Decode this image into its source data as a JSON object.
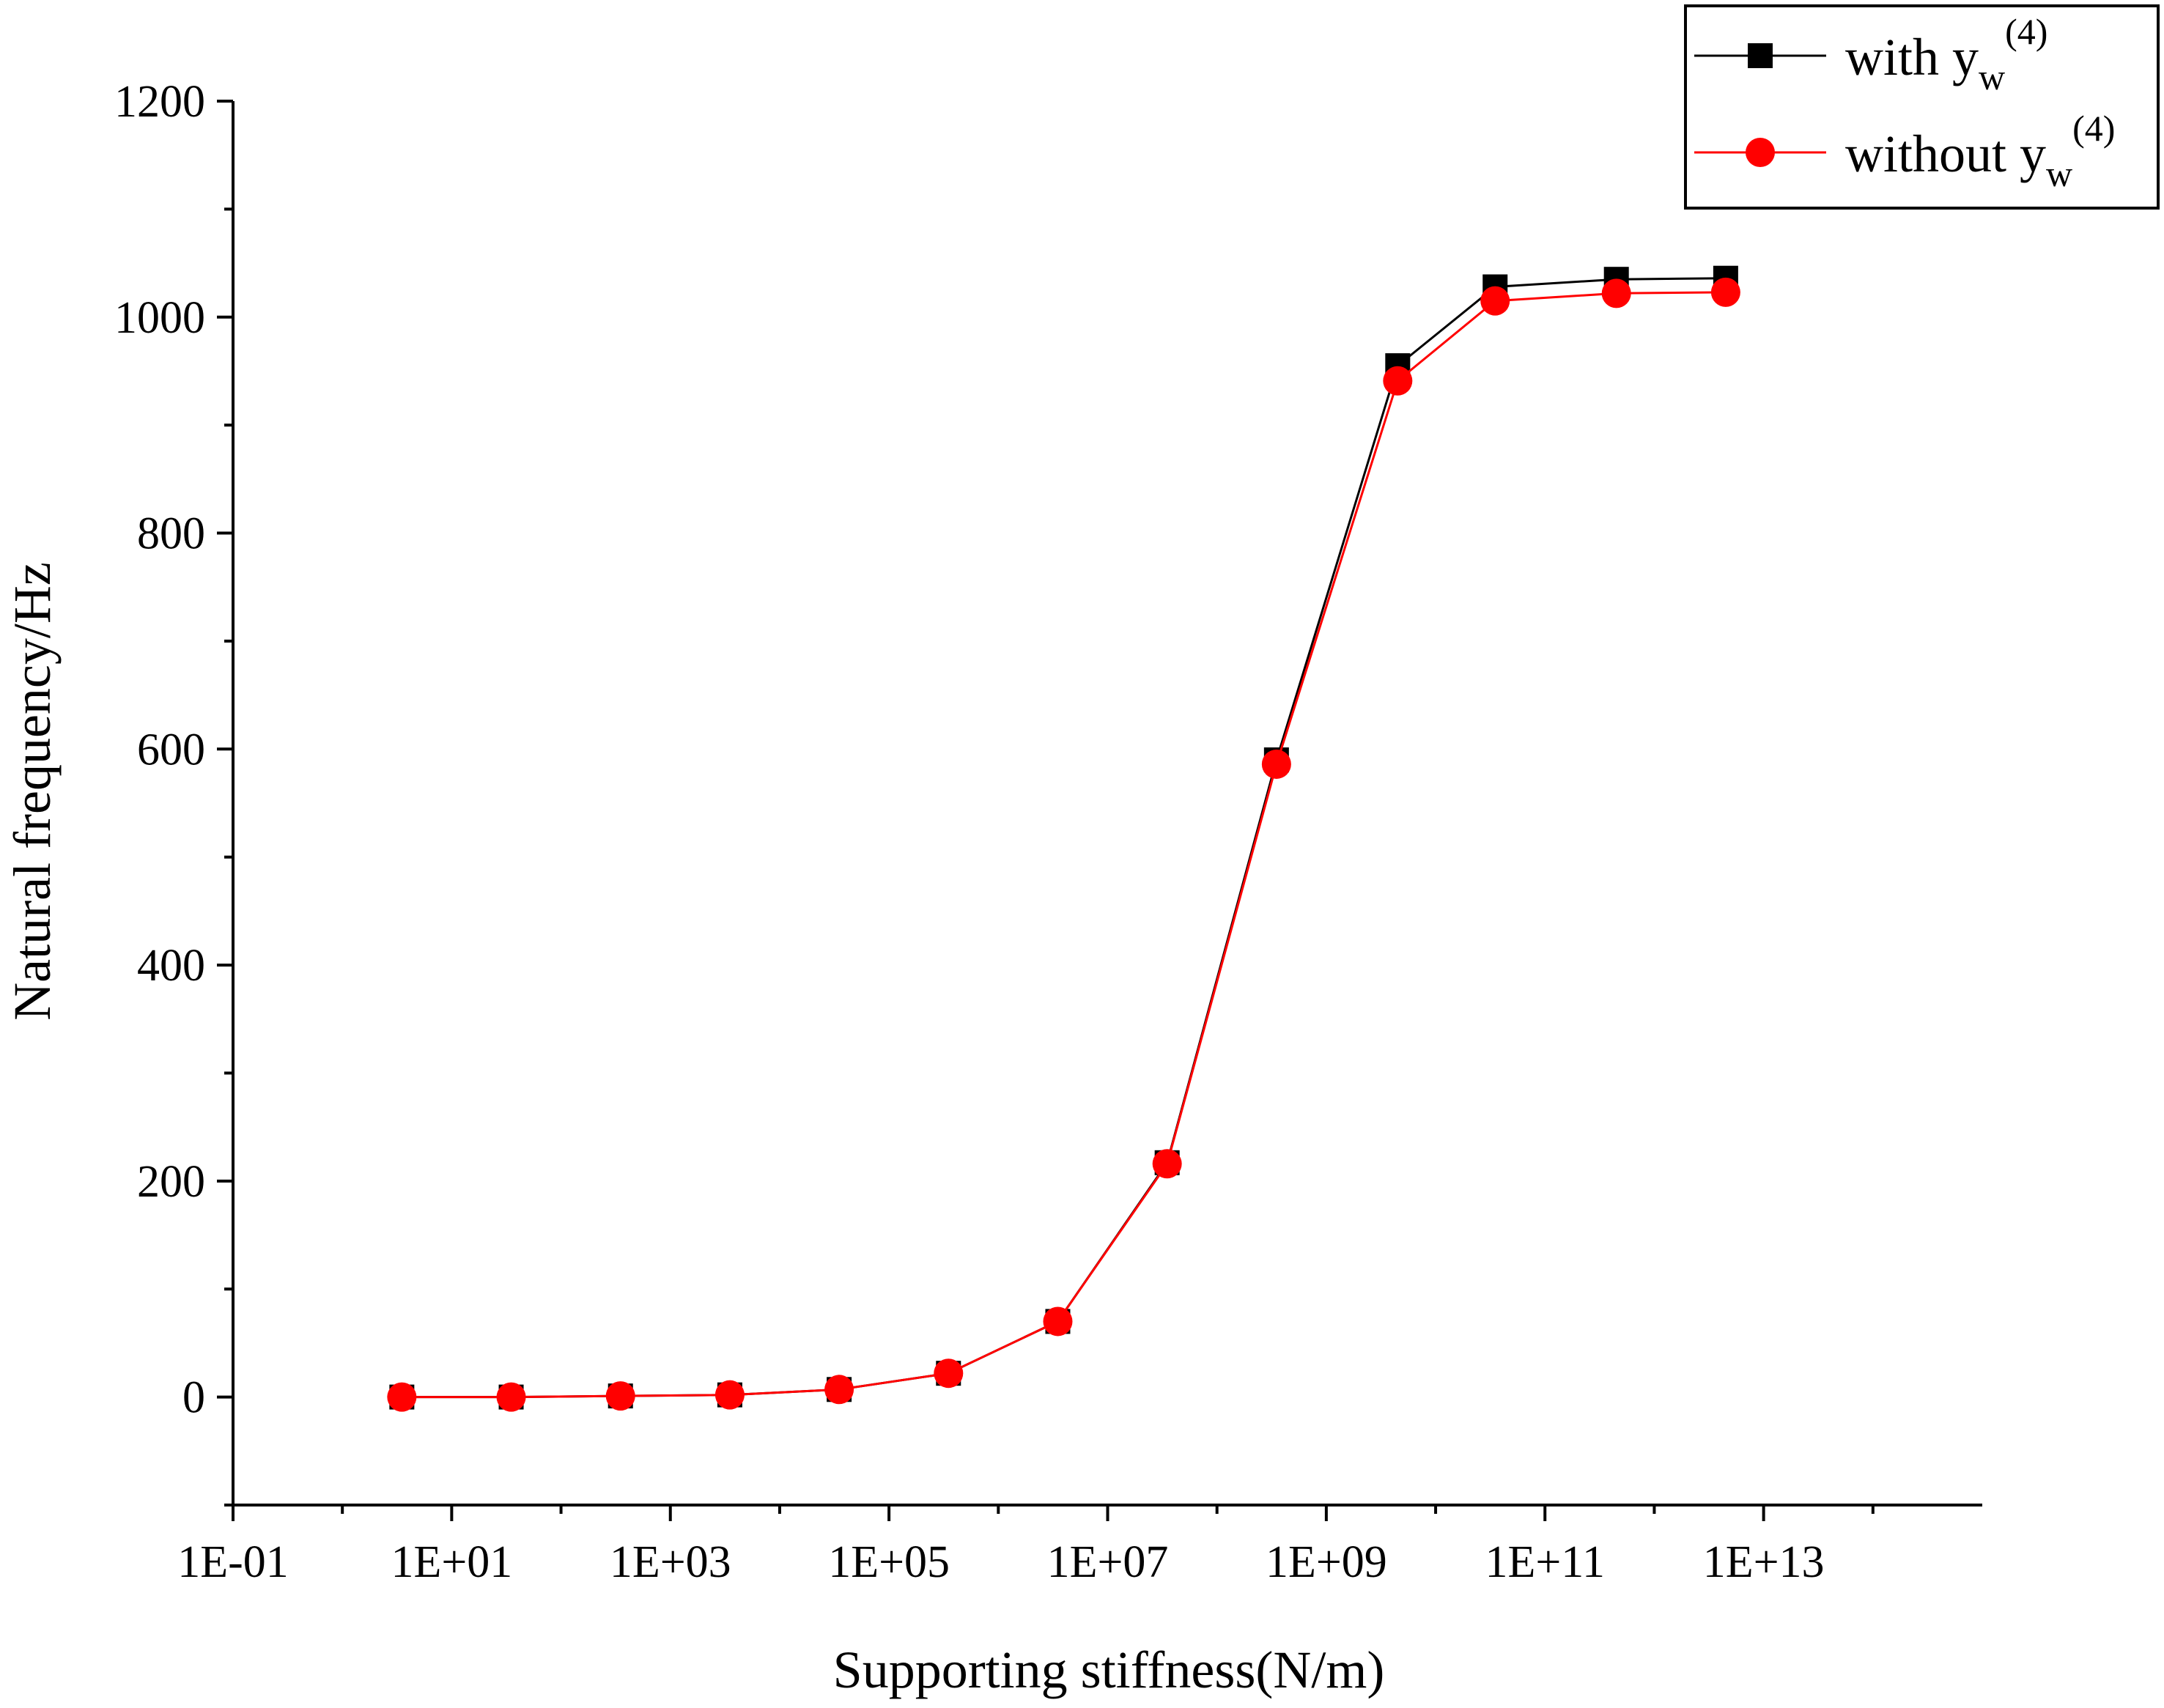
{
  "chart_data": {
    "type": "line",
    "xlabel": "Supporting stiffness(N/m)",
    "ylabel": "Natural frequency/Hz",
    "x_scale": "log",
    "xlim": [
      0.1,
      1000000000000000.0
    ],
    "ylim": [
      -100,
      1200
    ],
    "x_ticks": [
      0.1,
      10,
      1000,
      100000,
      10000000,
      1000000000,
      100000000000,
      10000000000000
    ],
    "x_tick_labels": [
      "1E-01",
      "1E+01",
      "1E+03",
      "1E+05",
      "1E+07",
      "1E+09",
      "1E+11",
      "1E+13"
    ],
    "y_ticks": [
      0,
      200,
      400,
      600,
      800,
      1000,
      1200
    ],
    "y_tick_labels": [
      "0",
      "200",
      "400",
      "600",
      "800",
      "1000",
      "1200"
    ],
    "grid": false,
    "legend_position": "top-right",
    "x": [
      3.5,
      35,
      350,
      3500,
      35000,
      350000,
      3500000,
      35000000,
      350000000,
      4500000000,
      35000000000,
      450000000000,
      4500000000000
    ],
    "series": [
      {
        "name_parts": {
          "base": "with y",
          "sub": "w",
          "sup": "(4)"
        },
        "color": "#000000",
        "marker": "square",
        "values": [
          0,
          0,
          1,
          2,
          7,
          22,
          70,
          217,
          590,
          955,
          1028,
          1035,
          1036
        ]
      },
      {
        "name_parts": {
          "base": "without y",
          "sub": "w",
          "sup": "(4)"
        },
        "color": "#ff0000",
        "marker": "circle",
        "values": [
          0,
          0,
          1,
          2,
          7,
          22,
          70,
          216,
          586,
          941,
          1015,
          1022,
          1023
        ]
      }
    ]
  }
}
